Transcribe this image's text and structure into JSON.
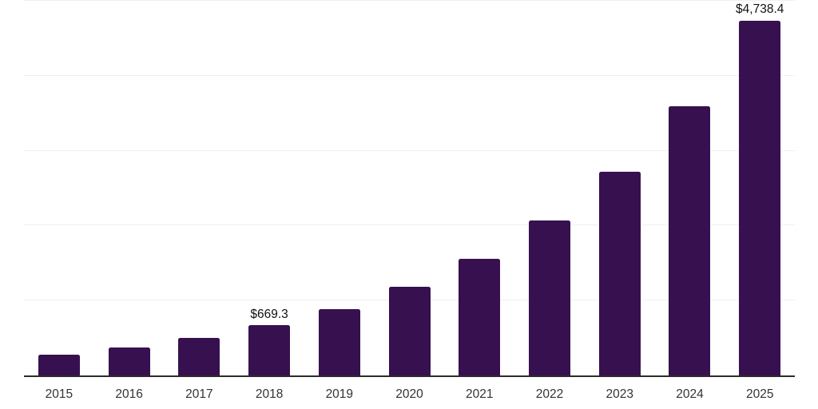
{
  "chart_data": {
    "type": "bar",
    "categories": [
      "2015",
      "2016",
      "2017",
      "2018",
      "2019",
      "2020",
      "2021",
      "2022",
      "2023",
      "2024",
      "2025"
    ],
    "values": [
      280,
      375,
      500,
      669.3,
      885,
      1180,
      1560,
      2065,
      2715,
      3590,
      4738.4
    ],
    "data_labels": [
      "",
      "",
      "",
      "$669.3",
      "",
      "",
      "",
      "",
      "",
      "",
      "$4,738.4"
    ],
    "title": "",
    "xlabel": "",
    "ylabel": "",
    "ylim": [
      0,
      5000
    ],
    "gridline_values": [
      1000,
      2000,
      3000,
      4000,
      5000
    ],
    "grid": "horizontal",
    "legend_position": "none",
    "y_axis_ticks_visible": false
  },
  "colors": {
    "bar": "#37114f",
    "axis_line": "#2b2b2b",
    "gridline": "#f0f0f0",
    "tick_label": "#333333",
    "data_label": "#111111",
    "background": "#ffffff"
  }
}
